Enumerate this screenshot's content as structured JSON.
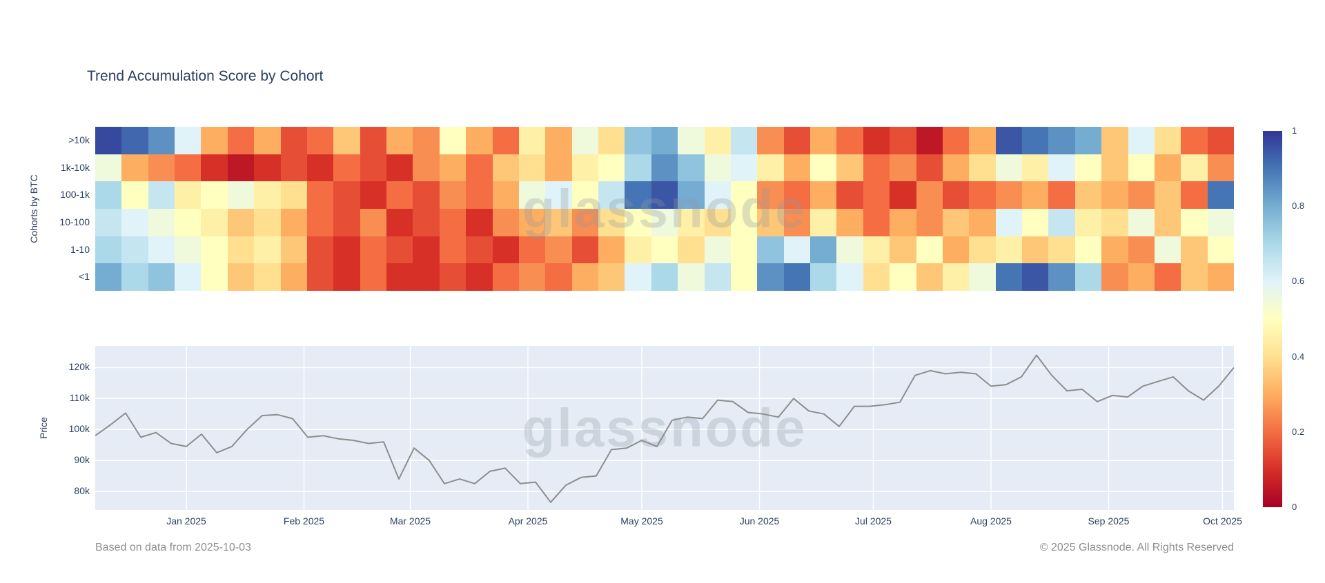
{
  "title": "Trend Accumulation Score by Cohort",
  "watermark": "glassnode",
  "footer": {
    "left": "Based on data from 2025-10-03",
    "right": "© 2025 Glassnode. All Rights Reserved"
  },
  "x_axis": {
    "start": "2024-12-08",
    "end": "2025-10-04",
    "ticks": [
      {
        "label": "Jan 2025",
        "date": "2025-01-01"
      },
      {
        "label": "Feb 2025",
        "date": "2025-02-01"
      },
      {
        "label": "Mar 2025",
        "date": "2025-03-01"
      },
      {
        "label": "Apr 2025",
        "date": "2025-04-01"
      },
      {
        "label": "May 2025",
        "date": "2025-05-01"
      },
      {
        "label": "Jun 2025",
        "date": "2025-06-01"
      },
      {
        "label": "Jul 2025",
        "date": "2025-07-01"
      },
      {
        "label": "Aug 2025",
        "date": "2025-08-01"
      },
      {
        "label": "Sep 2025",
        "date": "2025-09-01"
      },
      {
        "label": "Oct 2025",
        "date": "2025-10-01"
      }
    ]
  },
  "colorbar": {
    "min": 0,
    "max": 1,
    "ticks": [
      {
        "v": 1,
        "label": "1"
      },
      {
        "v": 0.8,
        "label": "0.8"
      },
      {
        "v": 0.6,
        "label": "0.6"
      },
      {
        "v": 0.4,
        "label": "0.4"
      },
      {
        "v": 0.2,
        "label": "0.2"
      },
      {
        "v": 0,
        "label": "0"
      }
    ]
  },
  "chart_data": [
    {
      "type": "heatmap",
      "title": "Trend Accumulation Score by Cohort",
      "ylabel": "Cohorts by BTC",
      "rows": [
        ">10k",
        "1k-10k",
        "100-1k",
        "10-100",
        "1-10",
        "<1"
      ],
      "x_start": "2024-12-08",
      "x_interval_days": 7,
      "zmin": 0,
      "zmax": 1,
      "colorscale": [
        [
          0,
          "#a50026"
        ],
        [
          0.1,
          "#d73027"
        ],
        [
          0.2,
          "#f46d43"
        ],
        [
          0.3,
          "#fdae61"
        ],
        [
          0.4,
          "#fee090"
        ],
        [
          0.5,
          "#ffffbf"
        ],
        [
          0.6,
          "#e0f3f8"
        ],
        [
          0.7,
          "#abd9e9"
        ],
        [
          0.8,
          "#74add1"
        ],
        [
          0.9,
          "#4575b4"
        ],
        [
          1,
          "#313695"
        ]
      ],
      "values": [
        [
          0.97,
          0.92,
          0.85,
          0.6,
          0.3,
          0.2,
          0.3,
          0.15,
          0.2,
          0.35,
          0.15,
          0.3,
          0.25,
          0.5,
          0.3,
          0.2,
          0.45,
          0.3,
          0.55,
          0.4,
          0.75,
          0.8,
          0.55,
          0.45,
          0.65,
          0.25,
          0.15,
          0.3,
          0.2,
          0.1,
          0.15,
          0.05,
          0.2,
          0.3,
          0.95,
          0.9,
          0.85,
          0.8,
          0.35,
          0.6,
          0.4,
          0.2,
          0.15
        ],
        [
          0.55,
          0.3,
          0.25,
          0.2,
          0.1,
          0.05,
          0.1,
          0.15,
          0.1,
          0.2,
          0.15,
          0.1,
          0.25,
          0.3,
          0.2,
          0.35,
          0.4,
          0.3,
          0.45,
          0.5,
          0.7,
          0.85,
          0.75,
          0.55,
          0.6,
          0.45,
          0.3,
          0.5,
          0.35,
          0.2,
          0.25,
          0.15,
          0.3,
          0.4,
          0.55,
          0.45,
          0.6,
          0.5,
          0.35,
          0.5,
          0.3,
          0.45,
          0.25
        ],
        [
          0.7,
          0.5,
          0.65,
          0.45,
          0.5,
          0.55,
          0.45,
          0.4,
          0.2,
          0.15,
          0.1,
          0.2,
          0.15,
          0.25,
          0.2,
          0.3,
          0.55,
          0.6,
          0.5,
          0.65,
          0.9,
          0.95,
          0.8,
          0.6,
          0.5,
          0.25,
          0.2,
          0.3,
          0.15,
          0.2,
          0.1,
          0.25,
          0.15,
          0.2,
          0.25,
          0.3,
          0.2,
          0.35,
          0.3,
          0.25,
          0.35,
          0.2,
          0.9
        ],
        [
          0.65,
          0.6,
          0.55,
          0.5,
          0.45,
          0.35,
          0.4,
          0.3,
          0.2,
          0.15,
          0.25,
          0.1,
          0.15,
          0.2,
          0.1,
          0.25,
          0.3,
          0.35,
          0.25,
          0.4,
          0.5,
          0.55,
          0.45,
          0.4,
          0.5,
          0.35,
          0.25,
          0.45,
          0.3,
          0.2,
          0.3,
          0.25,
          0.35,
          0.3,
          0.6,
          0.5,
          0.65,
          0.45,
          0.4,
          0.55,
          0.35,
          0.5,
          0.55
        ],
        [
          0.7,
          0.65,
          0.6,
          0.55,
          0.5,
          0.4,
          0.45,
          0.35,
          0.15,
          0.1,
          0.2,
          0.15,
          0.1,
          0.2,
          0.15,
          0.1,
          0.2,
          0.25,
          0.15,
          0.3,
          0.45,
          0.5,
          0.4,
          0.55,
          0.5,
          0.75,
          0.6,
          0.8,
          0.55,
          0.45,
          0.35,
          0.5,
          0.3,
          0.4,
          0.45,
          0.35,
          0.4,
          0.5,
          0.3,
          0.25,
          0.55,
          0.35,
          0.5
        ],
        [
          0.8,
          0.7,
          0.75,
          0.6,
          0.5,
          0.35,
          0.4,
          0.3,
          0.15,
          0.1,
          0.2,
          0.1,
          0.1,
          0.15,
          0.1,
          0.2,
          0.25,
          0.2,
          0.3,
          0.35,
          0.6,
          0.7,
          0.55,
          0.65,
          0.5,
          0.85,
          0.9,
          0.7,
          0.6,
          0.4,
          0.5,
          0.35,
          0.45,
          0.55,
          0.9,
          0.95,
          0.85,
          0.7,
          0.25,
          0.3,
          0.2,
          0.35,
          0.3
        ]
      ]
    },
    {
      "type": "line",
      "name": "BTC Price",
      "ylabel": "Price",
      "x_start": "2024-12-08",
      "x_interval_days": 4,
      "ylim": [
        74000,
        127000
      ],
      "yticks": [
        {
          "v": 80000,
          "label": "80k"
        },
        {
          "v": 90000,
          "label": "90k"
        },
        {
          "v": 100000,
          "label": "100k"
        },
        {
          "v": 110000,
          "label": "110k"
        },
        {
          "v": 120000,
          "label": "120k"
        }
      ],
      "line_color": "#8d8d8d",
      "bg_color": "#e5ecf6",
      "values": [
        98000,
        101500,
        105300,
        97500,
        99000,
        95500,
        94500,
        98500,
        92500,
        94500,
        100000,
        104500,
        104800,
        103500,
        97500,
        98000,
        97000,
        96500,
        95500,
        96000,
        84000,
        94000,
        90000,
        82500,
        84000,
        82500,
        86500,
        87500,
        82500,
        83000,
        76500,
        82000,
        84500,
        85000,
        93500,
        94000,
        96500,
        94500,
        103000,
        104000,
        103500,
        109500,
        109000,
        105500,
        105000,
        104000,
        110000,
        106000,
        105000,
        101000,
        107500,
        107500,
        108000,
        108800,
        117500,
        119000,
        118000,
        118500,
        118000,
        114000,
        114500,
        117000,
        124000,
        117500,
        112500,
        113000,
        109000,
        111000,
        110500,
        114000,
        115500,
        117000,
        112500,
        109500,
        114000,
        120000
      ]
    }
  ]
}
